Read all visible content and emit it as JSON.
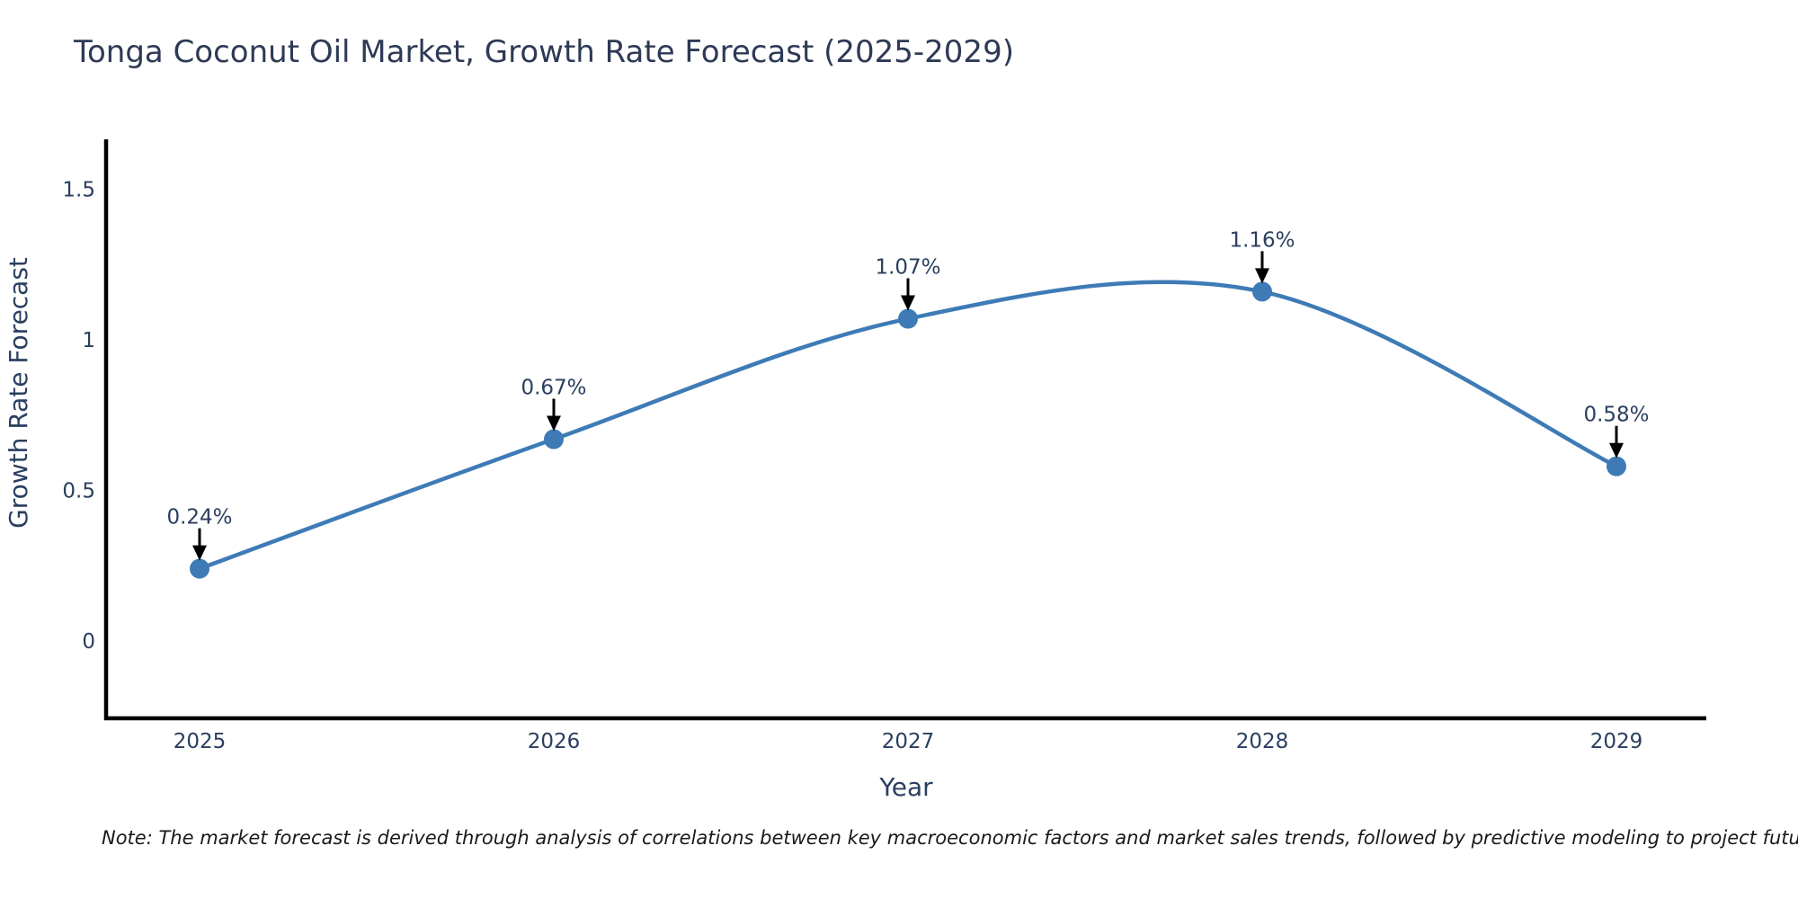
{
  "title": "Tonga Coconut Oil Market, Growth Rate Forecast (2025-2029)",
  "note": "Note: The market forecast is derived through analysis of correlations between key macroeconomic factors and market sales trends, followed by predictive modeling to project future sales",
  "colors": {
    "line": "#3e7bb6",
    "marker": "#3e7bb6",
    "axis_line": "#000000",
    "chart_text": "#2a3f5f",
    "title_text": "#2e3a55",
    "annotation_arrow": "#000000",
    "note_text": "#1a1a1a",
    "background": "#ffffff"
  },
  "chart_data": {
    "type": "line",
    "line_shape": "spline",
    "title": "Tonga Coconut Oil Market, Growth Rate Forecast (2025-2029)",
    "xlabel": "Year",
    "ylabel": "Growth Rate Forecast",
    "categories": [
      "2025",
      "2026",
      "2027",
      "2028",
      "2029"
    ],
    "values": [
      0.24,
      0.67,
      1.07,
      1.16,
      0.58
    ],
    "point_labels": [
      "0.24%",
      "0.67%",
      "1.07%",
      "1.16%",
      "0.58%"
    ],
    "y_ticks": [
      0,
      0.5,
      1,
      1.5
    ],
    "y_tick_labels": [
      "0",
      "0.5",
      "1",
      "1.5"
    ],
    "ylim": [
      -0.26,
      1.65
    ],
    "grid": false,
    "legend": false,
    "annotations": "black down-arrows from labels to markers"
  }
}
